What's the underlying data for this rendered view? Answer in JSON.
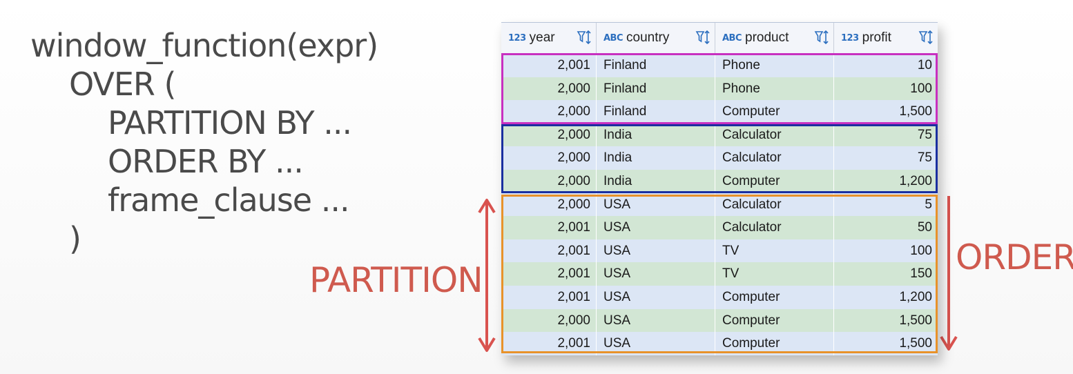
{
  "code": {
    "lines": [
      "window_function(expr)",
      "OVER (",
      "PARTITION BY ...",
      "ORDER BY ...",
      "frame_clause ...",
      ")"
    ]
  },
  "labels": {
    "partition": "PARTITION",
    "order": "ORDER"
  },
  "colors": {
    "partition_finland": "#c830c0",
    "partition_india": "#1a2fa0",
    "partition_usa": "#e8922a",
    "arrow": "#d9534f",
    "row_blue": "#dce6f5",
    "row_green": "#d2e6d4"
  },
  "grid": {
    "columns": [
      {
        "type": "123",
        "name": "year",
        "icon": "filter-sort-icon"
      },
      {
        "type": "ABC",
        "name": "country",
        "icon": "filter-sort-icon"
      },
      {
        "type": "ABC",
        "name": "product",
        "icon": "filter-sort-icon"
      },
      {
        "type": "123",
        "name": "profit",
        "icon": "filter-sort-icon"
      }
    ],
    "rows": [
      [
        "2,001",
        "Finland",
        "Phone",
        "10"
      ],
      [
        "2,000",
        "Finland",
        "Phone",
        "100"
      ],
      [
        "2,000",
        "Finland",
        "Computer",
        "1,500"
      ],
      [
        "2,000",
        "India",
        "Calculator",
        "75"
      ],
      [
        "2,000",
        "India",
        "Calculator",
        "75"
      ],
      [
        "2,000",
        "India",
        "Computer",
        "1,200"
      ],
      [
        "2,000",
        "USA",
        "Calculator",
        "5"
      ],
      [
        "2,001",
        "USA",
        "Calculator",
        "50"
      ],
      [
        "2,001",
        "USA",
        "TV",
        "100"
      ],
      [
        "2,001",
        "USA",
        "TV",
        "150"
      ],
      [
        "2,001",
        "USA",
        "Computer",
        "1,200"
      ],
      [
        "2,000",
        "USA",
        "Computer",
        "1,500"
      ],
      [
        "2,001",
        "USA",
        "Computer",
        "1,500"
      ]
    ]
  }
}
